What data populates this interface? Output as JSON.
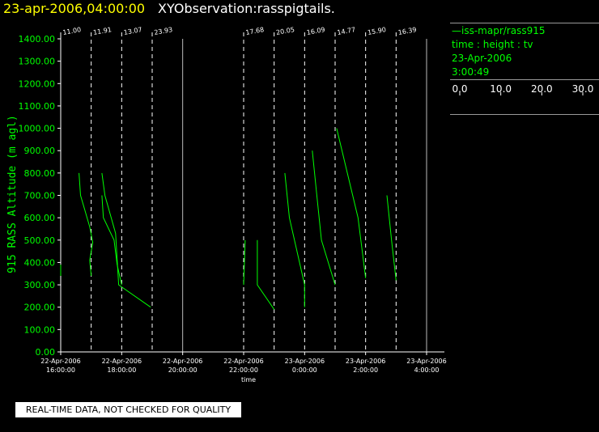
{
  "header": {
    "date_text": "23-apr-2006,04:00:00",
    "observation_text": "XYObservation:rasspigtails."
  },
  "legend": {
    "series_label": "—iss-mapr/rass915",
    "variable_line": "time : height : tv",
    "date": "23-Apr-2006",
    "time": "3:00:49",
    "scale_ticks": [
      "0.0",
      "10.0",
      "20.0",
      "30.0"
    ],
    "scale_label": "tv"
  },
  "quality_note": "REAL-TIME DATA, NOT CHECKED FOR QUALITY",
  "colors": {
    "trace": "#00ff00",
    "title_date": "#ffff00",
    "axes": "#ffffff"
  },
  "chart_data": {
    "type": "line",
    "xlabel": "time",
    "ylabel": "915 RASS Altitude (m agl)",
    "x_unit": "hours since 22-Apr-2006 00:00",
    "xlim": [
      16.0,
      28.0
    ],
    "ylim": [
      0,
      1400
    ],
    "y_ticks": [
      "0.00",
      "100.00",
      "200.00",
      "300.00",
      "400.00",
      "500.00",
      "600.00",
      "700.00",
      "800.00",
      "900.00",
      "1000.00",
      "1100.00",
      "1200.00",
      "1300.00",
      "1400.00"
    ],
    "x_ticks": [
      {
        "x": 16.0,
        "date": "22-Apr-2006",
        "time": "16:00:00"
      },
      {
        "x": 18.0,
        "date": "22-Apr-2006",
        "time": "18:00:00"
      },
      {
        "x": 20.0,
        "date": "22-Apr-2006",
        "time": "20:00:00"
      },
      {
        "x": 22.0,
        "date": "22-Apr-2006",
        "time": "22:00:00"
      },
      {
        "x": 24.0,
        "date": "23-Apr-2006",
        "time": "0:00:00"
      },
      {
        "x": 26.0,
        "date": "23-Apr-2006",
        "time": "2:00:00"
      },
      {
        "x": 28.0,
        "date": "23-Apr-2006",
        "time": "4:00:00"
      }
    ],
    "profiles": [
      {
        "time": 16.0,
        "value": "11.00",
        "points": [
          [
            16.0,
            340
          ],
          [
            16.0,
            390
          ]
        ]
      },
      {
        "time": 17.0,
        "value": "11.91",
        "points": [
          [
            16.6,
            800
          ],
          [
            16.65,
            700
          ],
          [
            16.95,
            560
          ],
          [
            17.05,
            490
          ],
          [
            16.95,
            410
          ],
          [
            17.0,
            340
          ]
        ]
      },
      {
        "time": 18.0,
        "value": "13.07",
        "points": [
          [
            17.35,
            800
          ],
          [
            17.45,
            700
          ],
          [
            17.8,
            530
          ],
          [
            17.9,
            300
          ],
          [
            18.95,
            200
          ]
        ]
      },
      {
        "time": 19.0,
        "value": "23.93",
        "points": [
          [
            17.35,
            700
          ],
          [
            17.4,
            600
          ],
          [
            17.75,
            500
          ],
          [
            17.85,
            390
          ],
          [
            18.0,
            300
          ]
        ]
      },
      {
        "time": 22.0,
        "value": "17.68",
        "points": [
          [
            22.0,
            300
          ],
          [
            22.05,
            500
          ]
        ]
      },
      {
        "time": 23.0,
        "value": "20.05",
        "points": [
          [
            22.45,
            500
          ],
          [
            22.45,
            300
          ],
          [
            23.0,
            190
          ]
        ]
      },
      {
        "time": 24.0,
        "value": "16.09",
        "points": [
          [
            23.35,
            800
          ],
          [
            23.5,
            600
          ],
          [
            24.0,
            300
          ],
          [
            24.0,
            200
          ]
        ]
      },
      {
        "time": 25.0,
        "value": "14.77",
        "points": [
          [
            24.25,
            900
          ],
          [
            24.4,
            700
          ],
          [
            24.55,
            500
          ],
          [
            25.0,
            300
          ]
        ]
      },
      {
        "time": 26.0,
        "value": "15.90",
        "points": [
          [
            25.05,
            1000
          ],
          [
            25.4,
            800
          ],
          [
            25.75,
            600
          ],
          [
            26.0,
            330
          ]
        ]
      },
      {
        "time": 27.0,
        "value": "16.39",
        "points": [
          [
            26.7,
            700
          ],
          [
            26.85,
            500
          ],
          [
            27.0,
            320
          ]
        ]
      }
    ]
  }
}
